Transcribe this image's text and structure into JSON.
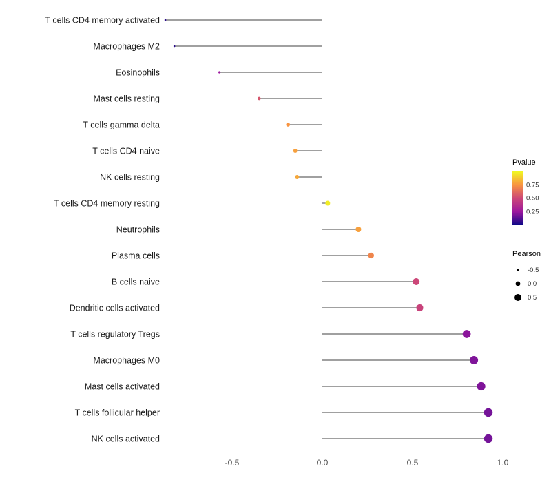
{
  "chart_data": {
    "type": "lollipop",
    "orientation": "horizontal",
    "title": "",
    "xlabel": "",
    "ylabel": "",
    "grid": false,
    "xlim": [
      -0.95,
      1.08
    ],
    "xticks": [
      "-0.5",
      "0.0",
      "0.5",
      "1.0"
    ],
    "xtick_values": [
      -0.5,
      0.0,
      0.5,
      1.0
    ],
    "categories": [
      "T cells CD4 memory activated",
      "Macrophages M2",
      "Eosinophils",
      "Mast cells resting",
      "T cells gamma delta",
      "T cells CD4 naive",
      "NK cells resting",
      "T cells CD4 memory resting",
      "Neutrophils",
      "Plasma cells",
      "B cells naive",
      "Dendritic cells activated",
      "T cells regulatory Tregs",
      "Macrophages M0",
      "Mast cells activated",
      "T cells follicular helper",
      "NK cells activated"
    ],
    "series": [
      {
        "name": "Pearson",
        "values": [
          -0.87,
          -0.82,
          -0.57,
          -0.35,
          -0.19,
          -0.15,
          -0.14,
          0.03,
          0.2,
          0.27,
          0.52,
          0.54,
          0.8,
          0.84,
          0.88,
          0.92,
          0.92
        ]
      },
      {
        "name": "Pvalue",
        "values": [
          0.05,
          0.05,
          0.25,
          0.55,
          0.75,
          0.78,
          0.8,
          0.97,
          0.78,
          0.7,
          0.5,
          0.48,
          0.22,
          0.2,
          0.2,
          0.18,
          0.18
        ]
      }
    ],
    "legends": {
      "color": {
        "title": "Pvalue",
        "ticks": [
          "0.75",
          "0.50",
          "0.25"
        ],
        "tick_values": [
          0.75,
          0.5,
          0.25
        ],
        "range": [
          0,
          1
        ],
        "stops": [
          {
            "t": 0.0,
            "color": "#0d0887"
          },
          {
            "t": 0.25,
            "color": "#9c179e"
          },
          {
            "t": 0.5,
            "color": "#cc4778"
          },
          {
            "t": 0.75,
            "color": "#f89441"
          },
          {
            "t": 1.0,
            "color": "#f0f921"
          }
        ]
      },
      "size": {
        "title": "Pearson",
        "ticks": [
          "-0.5",
          "0.0",
          "0.5"
        ],
        "tick_values": [
          -0.5,
          0.0,
          0.5
        ]
      }
    },
    "stem_color": "#000000",
    "axis_text_color": "#4d4d4d",
    "category_text_color": "#1a1a1a"
  }
}
